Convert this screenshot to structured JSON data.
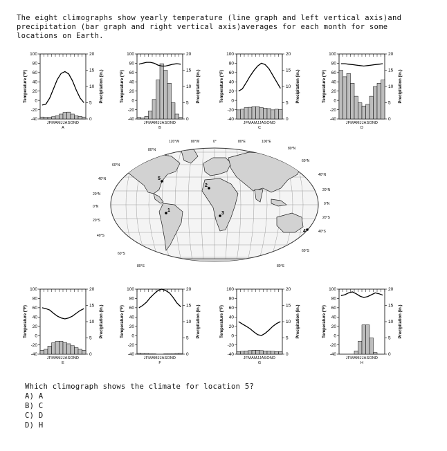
{
  "intro_text": "The eight climographs show yearly temperature (line graph and left vertical axis)and precipitation (bar graph and right vertical axis)averages for each month for some locations on Earth.",
  "climograph_common": {
    "temp_axis_label": "Temperature (°F)",
    "precip_axis_label": "Precipitation (in.)",
    "month_letters": "JFMAMJJASOND",
    "temp_ticks": [
      "100",
      "80",
      "60",
      "40",
      "20",
      "0",
      "-20",
      "-40"
    ],
    "precip_ticks": [
      "20",
      "15",
      "10",
      "5",
      "0"
    ]
  },
  "chart_data": [
    {
      "type": "bar",
      "label": "A",
      "categories": [
        "J",
        "F",
        "M",
        "A",
        "M",
        "J",
        "J",
        "A",
        "S",
        "O",
        "N",
        "D"
      ],
      "temperature_F": [
        -10,
        -8,
        5,
        25,
        45,
        58,
        62,
        57,
        42,
        22,
        5,
        -5
      ],
      "precipitation_in": [
        0.6,
        0.5,
        0.5,
        0.7,
        1.0,
        1.5,
        2.0,
        2.1,
        1.5,
        1.0,
        0.8,
        0.6
      ],
      "ylim_temp": [
        -40,
        100
      ],
      "ylim_precip": [
        0,
        20
      ]
    },
    {
      "type": "bar",
      "label": "B",
      "categories": [
        "J",
        "F",
        "M",
        "A",
        "M",
        "J",
        "J",
        "A",
        "S",
        "O",
        "N",
        "D"
      ],
      "temperature_F": [
        78,
        80,
        82,
        82,
        80,
        76,
        74,
        74,
        76,
        78,
        79,
        78
      ],
      "precipitation_in": [
        0.5,
        0.3,
        0.8,
        2.5,
        6.0,
        12.0,
        17.0,
        15.0,
        11.0,
        5.0,
        1.5,
        0.5
      ],
      "ylim_temp": [
        -40,
        100
      ],
      "ylim_precip": [
        0,
        20
      ]
    },
    {
      "type": "bar",
      "label": "C",
      "categories": [
        "J",
        "F",
        "M",
        "A",
        "M",
        "J",
        "J",
        "A",
        "S",
        "O",
        "N",
        "D"
      ],
      "temperature_F": [
        20,
        25,
        38,
        52,
        64,
        74,
        80,
        77,
        68,
        54,
        40,
        26
      ],
      "precipitation_in": [
        2.8,
        3.0,
        3.5,
        3.6,
        3.8,
        3.8,
        3.5,
        3.3,
        3.2,
        2.8,
        3.0,
        2.9
      ],
      "ylim_temp": [
        -40,
        100
      ],
      "ylim_precip": [
        0,
        20
      ]
    },
    {
      "type": "bar",
      "label": "D",
      "categories": [
        "J",
        "F",
        "M",
        "A",
        "M",
        "J",
        "J",
        "A",
        "S",
        "O",
        "N",
        "D"
      ],
      "temperature_F": [
        79,
        79,
        78,
        77,
        76,
        75,
        74,
        75,
        76,
        77,
        78,
        79
      ],
      "precipitation_in": [
        15,
        13,
        14,
        11,
        7,
        5,
        4,
        4.5,
        7,
        10,
        11,
        12
      ],
      "ylim_temp": [
        -40,
        100
      ],
      "ylim_precip": [
        0,
        20
      ]
    },
    {
      "type": "bar",
      "label": "E",
      "categories": [
        "J",
        "F",
        "M",
        "A",
        "M",
        "J",
        "J",
        "A",
        "S",
        "O",
        "N",
        "D"
      ],
      "temperature_F": [
        60,
        58,
        55,
        48,
        42,
        38,
        36,
        38,
        42,
        48,
        54,
        58
      ],
      "precipitation_in": [
        1.2,
        1.5,
        2.5,
        3.5,
        4.0,
        4.0,
        3.6,
        3.2,
        2.6,
        2.0,
        1.5,
        1.2
      ],
      "ylim_temp": [
        -40,
        100
      ],
      "ylim_precip": [
        0,
        20
      ]
    },
    {
      "type": "bar",
      "label": "F",
      "categories": [
        "J",
        "F",
        "M",
        "A",
        "M",
        "J",
        "J",
        "A",
        "S",
        "O",
        "N",
        "D"
      ],
      "temperature_F": [
        60,
        65,
        72,
        82,
        90,
        97,
        100,
        97,
        92,
        82,
        70,
        62
      ],
      "precipitation_in": [
        0.3,
        0.2,
        0.2,
        0.1,
        0.1,
        0,
        0,
        0.1,
        0.1,
        0.1,
        0.2,
        0.3
      ],
      "ylim_temp": [
        -40,
        100
      ],
      "ylim_precip": [
        0,
        20
      ]
    },
    {
      "type": "bar",
      "label": "G",
      "categories": [
        "J",
        "F",
        "M",
        "A",
        "M",
        "J",
        "J",
        "A",
        "S",
        "O",
        "N",
        "D"
      ],
      "temperature_F": [
        30,
        25,
        20,
        15,
        8,
        2,
        0,
        5,
        12,
        20,
        26,
        30
      ],
      "precipitation_in": [
        0.8,
        0.9,
        1.0,
        1.1,
        1.2,
        1.2,
        1.1,
        1.0,
        1.0,
        0.9,
        0.8,
        0.8
      ],
      "ylim_temp": [
        -40,
        100
      ],
      "ylim_precip": [
        0,
        20
      ]
    },
    {
      "type": "bar",
      "label": "H",
      "categories": [
        "J",
        "F",
        "M",
        "A",
        "M",
        "J",
        "J",
        "A",
        "S",
        "O",
        "N",
        "D"
      ],
      "temperature_F": [
        86,
        88,
        92,
        94,
        90,
        85,
        82,
        84,
        88,
        92,
        90,
        87
      ],
      "precipitation_in": [
        0,
        0,
        0,
        0,
        1.0,
        4.0,
        9.0,
        9.0,
        5.0,
        0.5,
        0,
        0
      ],
      "ylim_temp": [
        -40,
        100
      ],
      "ylim_precip": [
        0,
        20
      ]
    }
  ],
  "map": {
    "lat_labels_left": [
      "80°N",
      "60°N",
      "40°N",
      "20°N",
      "0°N",
      "20°S",
      "40°S",
      "60°S",
      "80°S"
    ],
    "lat_labels_right": [
      "80°N",
      "60°N",
      "40°N",
      "20°N",
      "0°N",
      "20°S",
      "40°S",
      "60°S",
      "80°S"
    ],
    "lon_labels_top": [
      "120°W",
      "80°W",
      "0°",
      "80°E",
      "100°E"
    ],
    "location_numbers": [
      "1",
      "2",
      "3",
      "4",
      "5"
    ]
  },
  "question": {
    "text": "Which climograph shows the climate for location 5?",
    "options": [
      "A)  A",
      "B)  C",
      "C)  D",
      "D)  H"
    ]
  }
}
